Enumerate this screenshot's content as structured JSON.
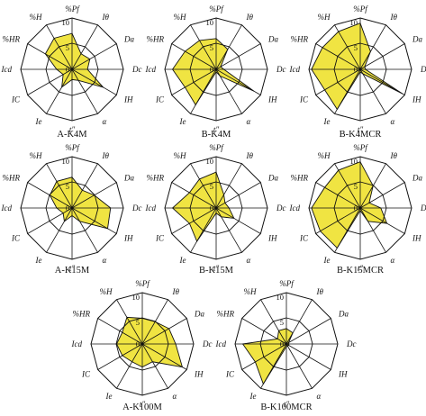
{
  "chart_data": [
    {
      "type": "radar",
      "title": "A-K4M",
      "axes": [
        "%Pf",
        "Iθ",
        "Da",
        "Dc",
        "IH",
        "α",
        "t″",
        "Ie",
        "IC",
        "Icd",
        "%HR",
        "%H"
      ],
      "range": [
        0,
        10
      ],
      "ticks": [
        "0",
        "5",
        "10"
      ],
      "values": [
        7.0,
        3.5,
        4.0,
        3.0,
        7.0,
        2.5,
        2.0,
        4.0,
        2.0,
        3.0,
        6.0,
        7.0
      ]
    },
    {
      "type": "radar",
      "title": "B-K4M",
      "axes": [
        "%Pf",
        "Iθ",
        "Da",
        "Dc",
        "IH",
        "α",
        "t″",
        "Ie",
        "IC",
        "Icd",
        "%HR",
        "%H"
      ],
      "range": [
        0,
        10
      ],
      "ticks": [
        "0",
        "5",
        "10"
      ],
      "values": [
        6.0,
        4.5,
        1.0,
        1.5,
        8.5,
        1.5,
        0.5,
        8.0,
        7.0,
        8.5,
        7.0,
        6.5
      ]
    },
    {
      "type": "radar",
      "title": "B-K4MCR",
      "axes": [
        "%Pf",
        "Iθ",
        "Da",
        "Dc",
        "IH",
        "α",
        "t″",
        "Ie",
        "IC",
        "Icd",
        "%HR",
        "%H"
      ],
      "range": [
        0,
        10
      ],
      "ticks": [
        "0",
        "5",
        "10"
      ],
      "values": [
        9.0,
        4.0,
        1.0,
        1.0,
        9.5,
        1.0,
        0.5,
        9.0,
        8.0,
        9.5,
        8.5,
        8.5
      ]
    },
    {
      "type": "radar",
      "title": "A-K15M",
      "axes": [
        "%Pf",
        "Iθ",
        "Da",
        "Dc",
        "IH",
        "α",
        "t″",
        "Ie",
        "IC",
        "Icd",
        "%HR",
        "%H"
      ],
      "range": [
        0,
        10
      ],
      "ticks": [
        "0",
        "5",
        "10"
      ],
      "values": [
        6.0,
        4.0,
        5.0,
        7.5,
        8.0,
        3.0,
        1.5,
        3.0,
        2.0,
        3.0,
        5.0,
        6.0
      ]
    },
    {
      "type": "radar",
      "title": "B-K15M",
      "axes": [
        "%Pf",
        "Iθ",
        "Da",
        "Dc",
        "IH",
        "α",
        "t″",
        "Ie",
        "IC",
        "Icd",
        "%HR",
        "%H"
      ],
      "range": [
        0,
        10
      ],
      "ticks": [
        "0",
        "5",
        "10"
      ],
      "values": [
        7.0,
        3.0,
        2.0,
        2.5,
        4.0,
        2.0,
        1.0,
        7.5,
        6.0,
        8.5,
        6.0,
        6.5
      ]
    },
    {
      "type": "radar",
      "title": "B-K15MCR",
      "axes": [
        "%Pf",
        "Iθ",
        "Da",
        "Dc",
        "IH",
        "α",
        "t″",
        "Ie",
        "IC",
        "Icd",
        "%HR",
        "%H"
      ],
      "range": [
        0,
        10
      ],
      "ticks": [
        "0",
        "5",
        "10"
      ],
      "values": [
        9.0,
        5.0,
        2.0,
        4.0,
        6.0,
        3.0,
        0.5,
        9.0,
        9.0,
        9.5,
        8.0,
        8.5
      ]
    },
    {
      "type": "radar",
      "title": "A-K100M",
      "axes": [
        "%Pf",
        "Iθ",
        "Da",
        "Dc",
        "IH",
        "α",
        "t″",
        "Ie",
        "IC",
        "Icd",
        "%HR",
        "%H"
      ],
      "range": [
        0,
        10
      ],
      "ticks": [
        "0",
        "5",
        "10"
      ],
      "values": [
        5.0,
        5.0,
        6.0,
        6.5,
        9.0,
        4.0,
        4.5,
        4.0,
        4.5,
        5.0,
        4.5,
        6.0
      ]
    },
    {
      "type": "radar",
      "title": "B-K100MCR",
      "axes": [
        "%Pf",
        "Iθ",
        "Da",
        "Dc",
        "IH",
        "α",
        "t″",
        "Ie",
        "IC",
        "Icd",
        "%HR",
        "%H"
      ],
      "range": [
        0,
        10
      ],
      "ticks": [
        "0",
        "5",
        "10"
      ],
      "values": [
        3.0,
        2.5,
        0.5,
        0.5,
        0.5,
        0.5,
        0.5,
        9.0,
        7.0,
        8.5,
        2.0,
        3.0
      ]
    }
  ],
  "colors": {
    "fill": "#f0e442",
    "stroke": "#111111",
    "grid": "#111111"
  }
}
